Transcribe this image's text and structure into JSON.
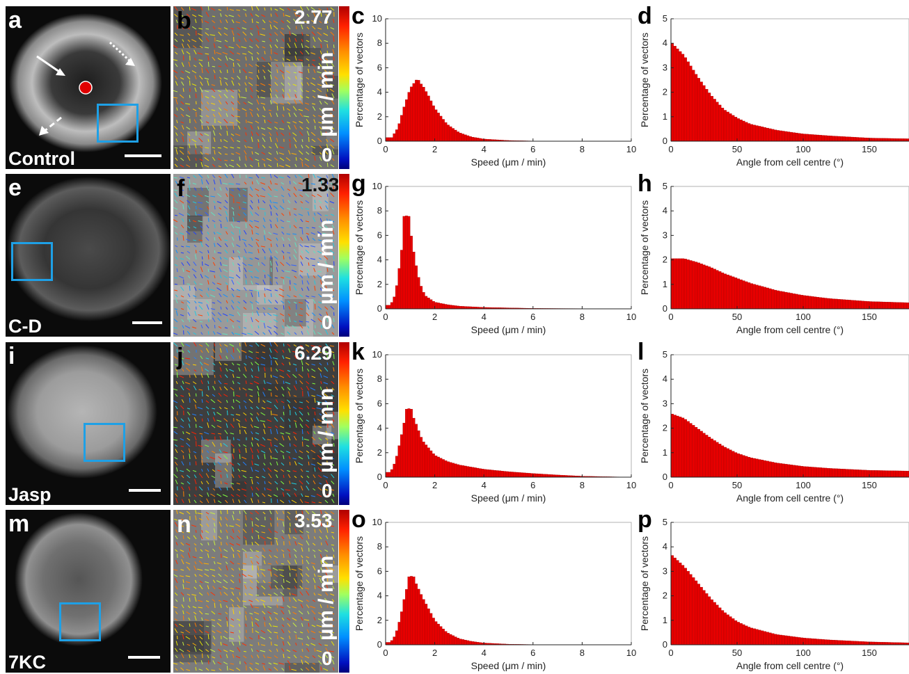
{
  "colors": {
    "bar": "#e60000",
    "bar_edge": "#9a0000",
    "roi": "#1ea0e6",
    "centre_marker": "#e00000"
  },
  "rows": [
    {
      "micro_letter": "a",
      "condition": "Control",
      "flow_letter": "b",
      "max_speed": "2.77",
      "zero": "0",
      "unit": "µm / min",
      "hist_speed_letter": "c",
      "hist_angle_letter": "d"
    },
    {
      "micro_letter": "e",
      "condition": "C-D",
      "flow_letter": "f",
      "max_speed": "1.33",
      "zero": "0",
      "unit": "µm / min",
      "hist_speed_letter": "g",
      "hist_angle_letter": "h"
    },
    {
      "micro_letter": "i",
      "condition": "Jasp",
      "flow_letter": "j",
      "max_speed": "6.29",
      "zero": "0",
      "unit": "µm / min",
      "hist_speed_letter": "k",
      "hist_angle_letter": "l"
    },
    {
      "micro_letter": "m",
      "condition": "7KC",
      "flow_letter": "n",
      "max_speed": "3.53",
      "zero": "0",
      "unit": "µm / min",
      "hist_speed_letter": "o",
      "hist_angle_letter": "p"
    }
  ],
  "chart_data": [
    {
      "panel": "c",
      "type": "bar",
      "xlabel": "Speed (μm / min)",
      "ylabel": "Percentage of vectors",
      "xlim": [
        0,
        10
      ],
      "ylim": [
        0,
        10
      ],
      "xticks": [
        0,
        2,
        4,
        6,
        8,
        10
      ],
      "yticks": [
        0,
        2,
        4,
        6,
        8,
        10
      ],
      "bin_width": 0.1,
      "peak_x": 1.3,
      "peak_y": 5.0,
      "x": [
        0.25,
        0.5,
        0.75,
        1.0,
        1.25,
        1.5,
        1.75,
        2.0,
        2.5,
        3.0,
        3.5,
        4.0,
        5.0,
        6.0,
        8.0,
        10.0
      ],
      "values": [
        0.3,
        1.1,
        2.8,
        4.3,
        5.0,
        4.6,
        3.7,
        2.7,
        1.4,
        0.7,
        0.35,
        0.18,
        0.06,
        0.02,
        0.0,
        0.0
      ]
    },
    {
      "panel": "d",
      "type": "bar",
      "xlabel": "Angle from cell centre (°)",
      "ylabel": "Percentage of vectors",
      "xlim": [
        0,
        180
      ],
      "ylim": [
        0,
        5
      ],
      "xticks": [
        0,
        50,
        100,
        150
      ],
      "yticks": [
        0,
        1,
        2,
        3,
        4,
        5
      ],
      "bin_width": 2,
      "x": [
        0,
        10,
        20,
        30,
        40,
        50,
        60,
        80,
        100,
        120,
        150,
        180
      ],
      "values": [
        4.05,
        3.5,
        2.65,
        1.9,
        1.3,
        0.95,
        0.7,
        0.45,
        0.3,
        0.22,
        0.13,
        0.1
      ]
    },
    {
      "panel": "g",
      "type": "bar",
      "xlabel": "Speed (μm / min)",
      "ylabel": "Percentage of vectors",
      "xlim": [
        0,
        10
      ],
      "ylim": [
        0,
        10
      ],
      "xticks": [
        0,
        2,
        4,
        6,
        8,
        10
      ],
      "yticks": [
        0,
        2,
        4,
        6,
        8,
        10
      ],
      "bin_width": 0.1,
      "peak_x": 0.85,
      "peak_y": 7.6,
      "x": [
        0.2,
        0.4,
        0.6,
        0.8,
        0.9,
        1.0,
        1.2,
        1.4,
        1.6,
        2.0,
        2.5,
        3.0,
        4.0,
        6.0,
        10.0
      ],
      "values": [
        0.3,
        1.2,
        4.0,
        7.2,
        7.6,
        6.6,
        4.0,
        2.1,
        1.1,
        0.55,
        0.35,
        0.22,
        0.12,
        0.04,
        0.0
      ]
    },
    {
      "panel": "h",
      "type": "bar",
      "xlabel": "Angle from cell centre (°)",
      "ylabel": "Percentage of vectors",
      "xlim": [
        0,
        180
      ],
      "ylim": [
        0,
        5
      ],
      "xticks": [
        0,
        50,
        100,
        150
      ],
      "yticks": [
        0,
        1,
        2,
        3,
        4,
        5
      ],
      "bin_width": 2,
      "x": [
        0,
        10,
        20,
        30,
        40,
        50,
        60,
        80,
        100,
        120,
        150,
        180
      ],
      "values": [
        2.05,
        2.05,
        1.9,
        1.7,
        1.45,
        1.25,
        1.05,
        0.75,
        0.55,
        0.42,
        0.3,
        0.25
      ]
    },
    {
      "panel": "k",
      "type": "bar",
      "xlabel": "Speed (μm / min)",
      "ylabel": "Percentage of vectors",
      "xlim": [
        0,
        10
      ],
      "ylim": [
        0,
        10
      ],
      "xticks": [
        0,
        2,
        4,
        6,
        8,
        10
      ],
      "yticks": [
        0,
        2,
        4,
        6,
        8,
        10
      ],
      "bin_width": 0.1,
      "peak_x": 0.95,
      "peak_y": 5.6,
      "x": [
        0.2,
        0.4,
        0.6,
        0.8,
        1.0,
        1.2,
        1.5,
        2.0,
        2.5,
        3.0,
        4.0,
        5.0,
        6.0,
        7.0,
        8.0,
        10.0
      ],
      "values": [
        0.4,
        1.3,
        3.0,
        4.9,
        5.5,
        4.6,
        3.0,
        1.8,
        1.3,
        1.0,
        0.65,
        0.45,
        0.3,
        0.18,
        0.08,
        0.0
      ]
    },
    {
      "panel": "l",
      "type": "bar",
      "xlabel": "Angle from cell centre (°)",
      "ylabel": "Percentage of vectors",
      "xlim": [
        0,
        180
      ],
      "ylim": [
        0,
        5
      ],
      "xticks": [
        0,
        50,
        100,
        150
      ],
      "yticks": [
        0,
        1,
        2,
        3,
        4,
        5
      ],
      "bin_width": 2,
      "x": [
        0,
        10,
        20,
        30,
        40,
        50,
        60,
        80,
        100,
        120,
        150,
        180
      ],
      "values": [
        2.6,
        2.4,
        2.0,
        1.6,
        1.25,
        0.98,
        0.8,
        0.58,
        0.44,
        0.36,
        0.28,
        0.25
      ]
    },
    {
      "panel": "o",
      "type": "bar",
      "xlabel": "Speed (μm / min)",
      "ylabel": "Percentage of vectors",
      "xlim": [
        0,
        10
      ],
      "ylim": [
        0,
        10
      ],
      "xticks": [
        0,
        2,
        4,
        6,
        8,
        10
      ],
      "yticks": [
        0,
        2,
        4,
        6,
        8,
        10
      ],
      "bin_width": 0.1,
      "peak_x": 1.05,
      "peak_y": 5.6,
      "x": [
        0.2,
        0.4,
        0.6,
        0.8,
        1.0,
        1.2,
        1.5,
        2.0,
        2.5,
        3.0,
        3.5,
        4.0,
        5.0,
        6.0,
        8.0,
        10.0
      ],
      "values": [
        0.2,
        0.8,
        2.2,
        4.2,
        5.5,
        5.2,
        3.9,
        2.0,
        1.0,
        0.5,
        0.28,
        0.15,
        0.05,
        0.02,
        0.0,
        0.0
      ]
    },
    {
      "panel": "p",
      "type": "bar",
      "xlabel": "Angle from cell centre (°)",
      "ylabel": "Percentage of vectors",
      "xlim": [
        0,
        180
      ],
      "ylim": [
        0,
        5
      ],
      "xticks": [
        0,
        50,
        100,
        150
      ],
      "yticks": [
        0,
        1,
        2,
        3,
        4,
        5
      ],
      "bin_width": 2,
      "x": [
        0,
        10,
        20,
        30,
        40,
        50,
        60,
        80,
        100,
        120,
        150,
        180
      ],
      "values": [
        3.7,
        3.2,
        2.55,
        1.9,
        1.35,
        0.95,
        0.7,
        0.42,
        0.28,
        0.2,
        0.12,
        0.08
      ]
    }
  ]
}
